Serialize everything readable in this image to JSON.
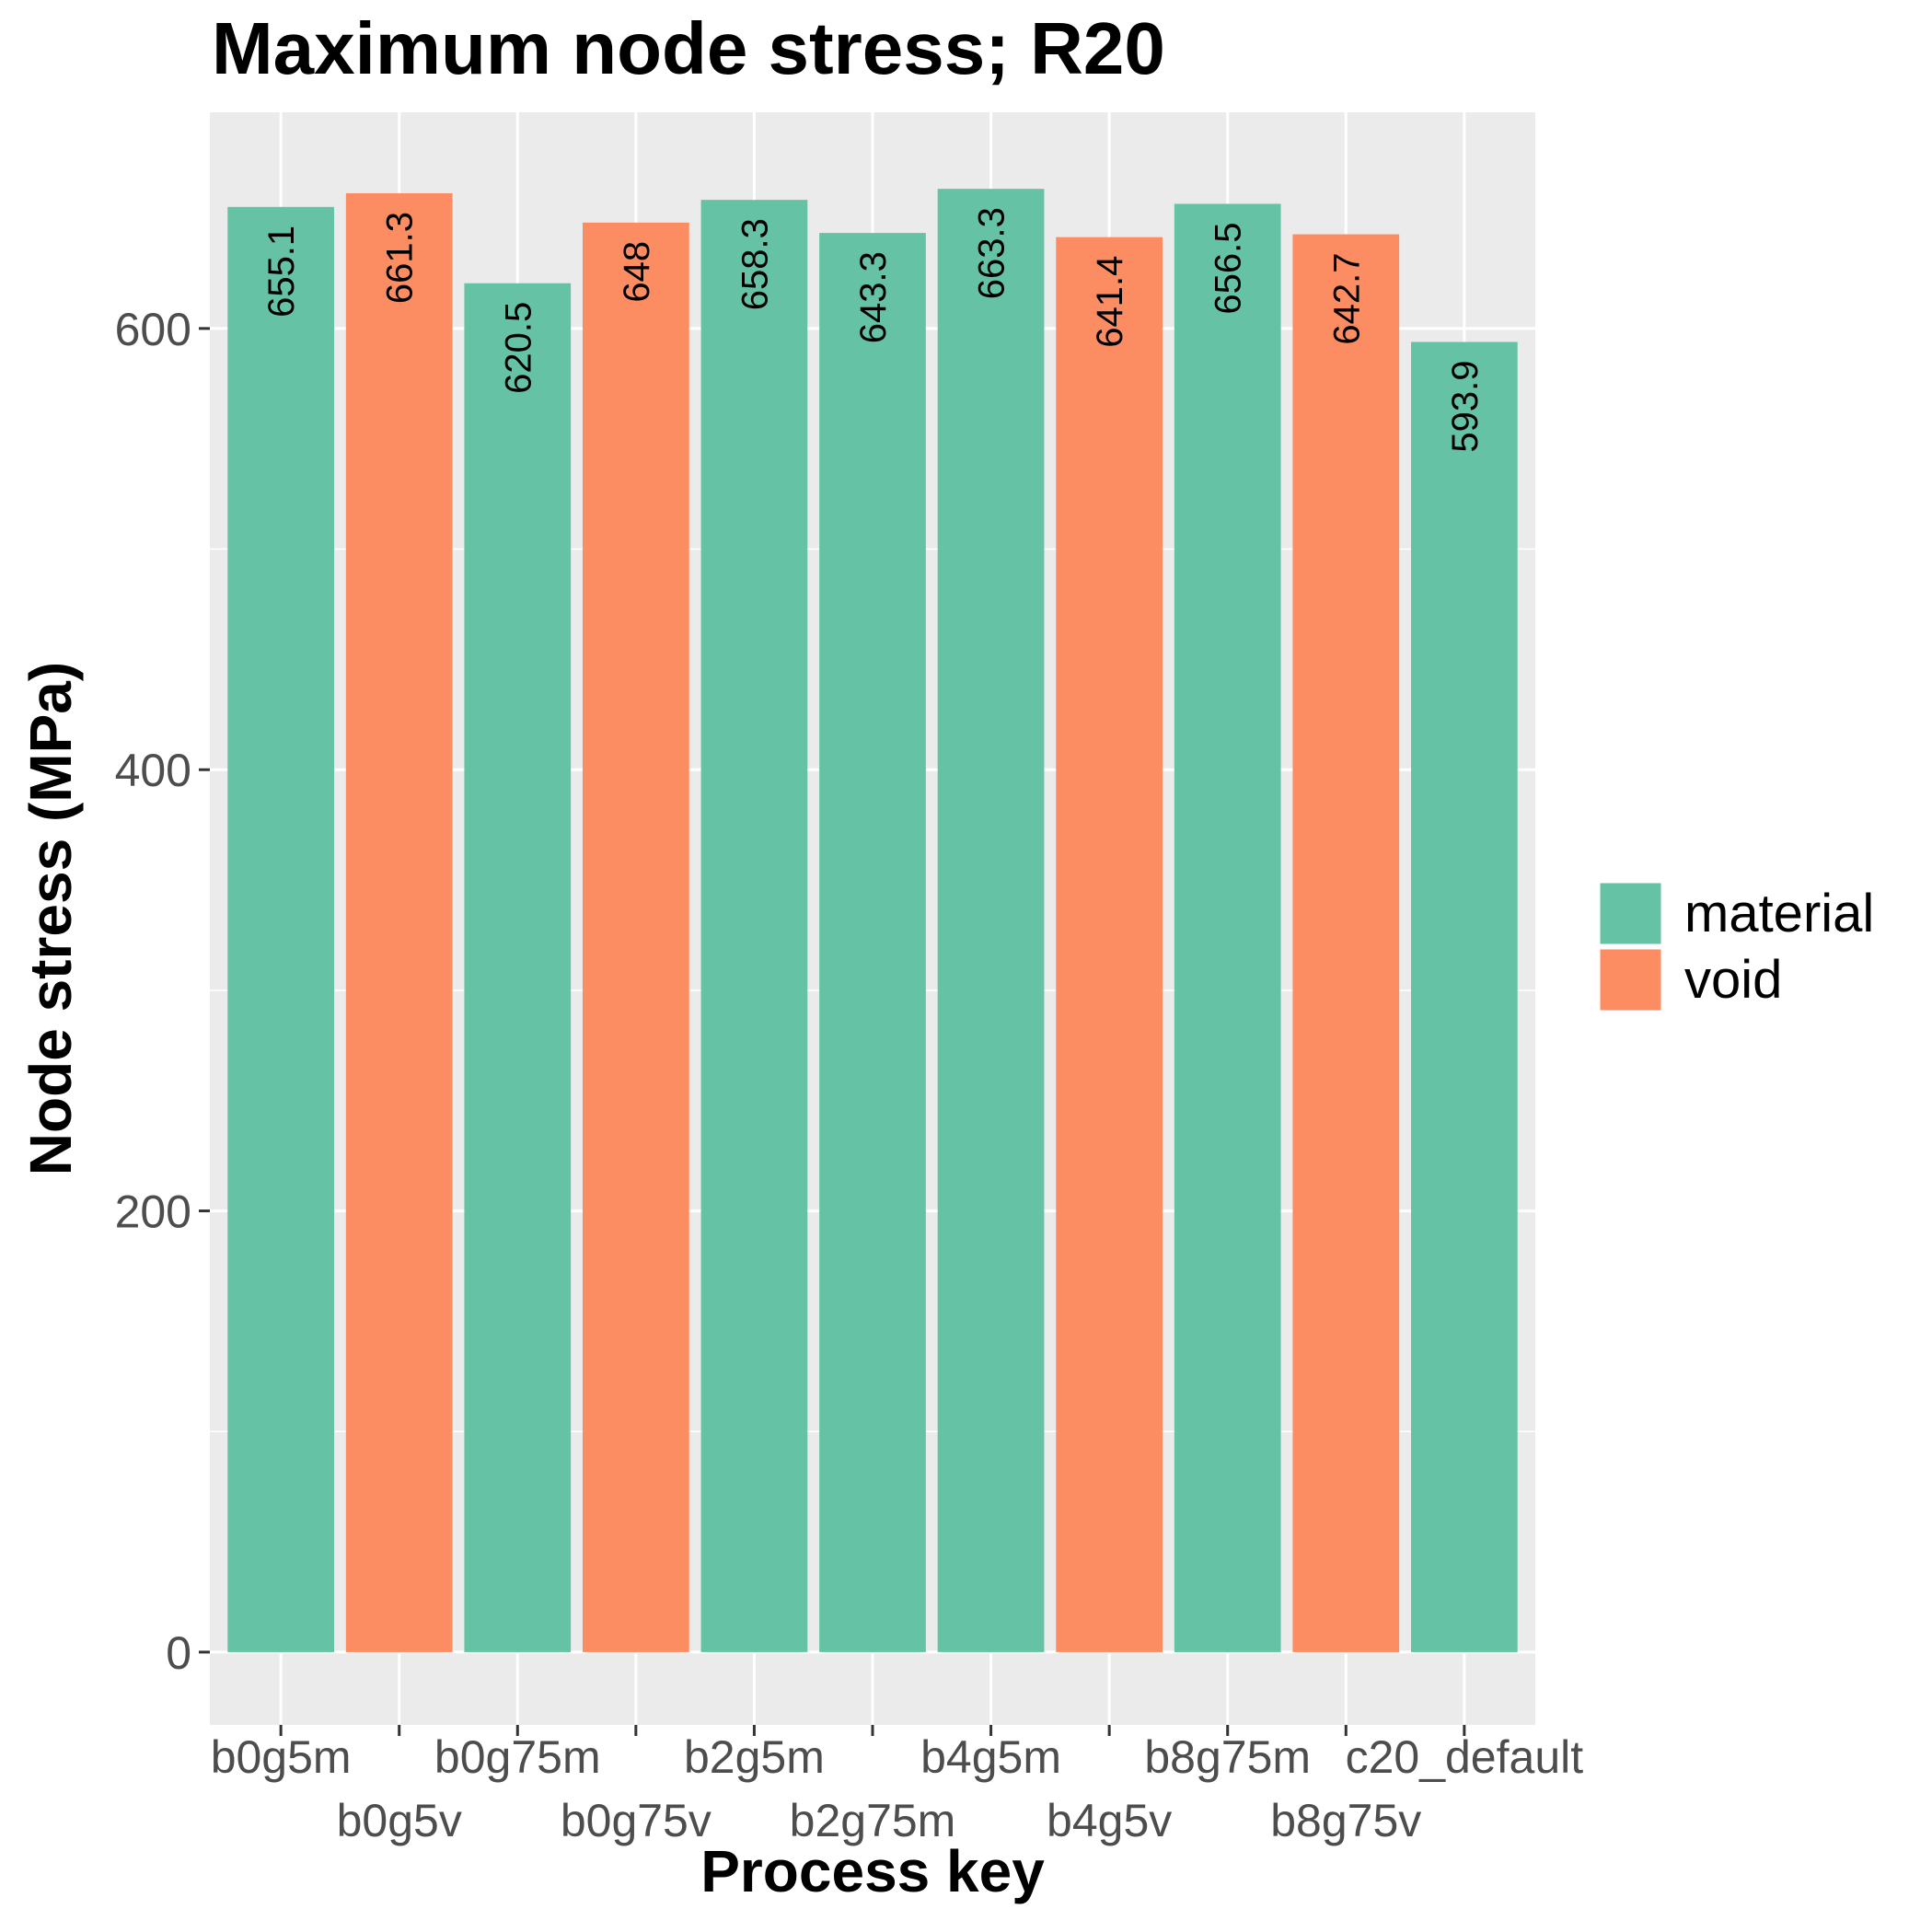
{
  "chart_data": {
    "type": "bar",
    "title": "Maximum node stress; R20",
    "xlabel": "Process key",
    "ylabel": "Node stress (MPa)",
    "categories": [
      "b0g5m",
      "b0g5v",
      "b0g75m",
      "b0g75v",
      "b2g5m",
      "b2g75m",
      "b4g5m",
      "b4g5v",
      "b8g75m",
      "b8g75v",
      "c20_default"
    ],
    "values": [
      655.1,
      661.3,
      620.5,
      648,
      658.3,
      643.3,
      663.3,
      641.4,
      656.5,
      642.7,
      593.9
    ],
    "value_labels": [
      "655.1",
      "661.3",
      "620.5",
      "648",
      "658.3",
      "643.3",
      "663.3",
      "641.4",
      "656.5",
      "642.7",
      "593.9"
    ],
    "groups": [
      "material",
      "void",
      "material",
      "void",
      "material",
      "material",
      "material",
      "void",
      "material",
      "void",
      "material"
    ],
    "legend": {
      "placement": "right",
      "entries": [
        {
          "name": "material",
          "color": "#66c2a5"
        },
        {
          "name": "void",
          "color": "#fc8d62"
        }
      ]
    },
    "yticks": [
      "0",
      "200",
      "400",
      "600"
    ],
    "ylim": [
      -33,
      698
    ],
    "grid": true,
    "panel_background": "#ebebeb",
    "grid_color": "#ffffff"
  }
}
